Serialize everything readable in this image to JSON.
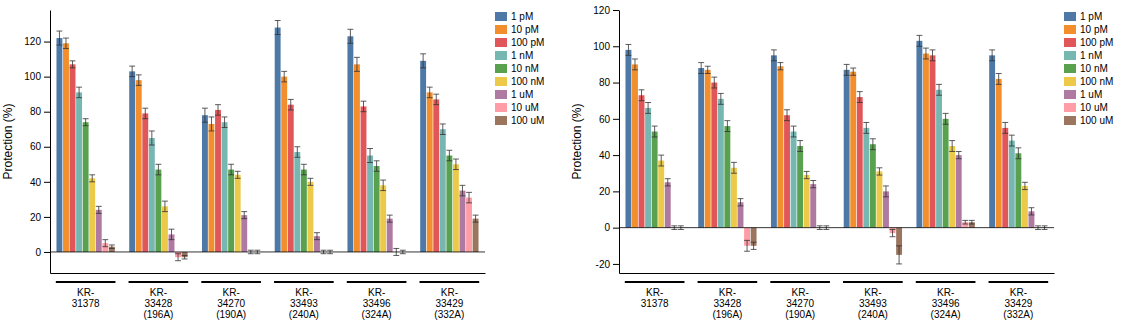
{
  "chart_data": [
    {
      "type": "bar",
      "ylabel": "Protection (%)",
      "categories": [
        "KR-\n31378",
        "KR-\n33428\n(196A)",
        "KR-\n34270\n(190A)",
        "KR-\n33493\n(240A)",
        "KR-\n33496\n(324A)",
        "KR-\n33429\n(332A)"
      ],
      "series": [
        {
          "name": "1 pM",
          "values": [
            122,
            103,
            78,
            128,
            123,
            109
          ],
          "errors": [
            4,
            3,
            4,
            4,
            4,
            4
          ]
        },
        {
          "name": "10 pM",
          "values": [
            119,
            98,
            73,
            100,
            107,
            91
          ],
          "errors": [
            3,
            3,
            4,
            3,
            4,
            3
          ]
        },
        {
          "name": "100 pM",
          "values": [
            107,
            79,
            81,
            84,
            83,
            87
          ],
          "errors": [
            2,
            3,
            3,
            3,
            3,
            3
          ]
        },
        {
          "name": "1 nM",
          "values": [
            91,
            65,
            74,
            57,
            55,
            70
          ],
          "errors": [
            3,
            4,
            3,
            3,
            4,
            3
          ]
        },
        {
          "name": "10 nM",
          "values": [
            74,
            47,
            47,
            47,
            49,
            55
          ],
          "errors": [
            2,
            3,
            3,
            3,
            3,
            3
          ]
        },
        {
          "name": "100 nM",
          "values": [
            42,
            26,
            44,
            40,
            38,
            50
          ],
          "errors": [
            2,
            3,
            2,
            2,
            3,
            3
          ]
        },
        {
          "name": "1 uM",
          "values": [
            24,
            10,
            21,
            9,
            19,
            35
          ],
          "errors": [
            2,
            3,
            2,
            2,
            2,
            3
          ]
        },
        {
          "name": "10 uM",
          "values": [
            5,
            -3,
            0,
            0,
            0,
            31
          ],
          "errors": [
            2,
            2,
            1,
            1,
            2,
            3
          ]
        },
        {
          "name": "100 uM",
          "values": [
            3,
            -3,
            0,
            0,
            0,
            19
          ],
          "errors": [
            1,
            1,
            1,
            1,
            1,
            2
          ]
        }
      ],
      "ylim": [
        -12,
        138
      ],
      "yticks": [
        0,
        20,
        40,
        60,
        80,
        100,
        120
      ],
      "grid": false,
      "legend": "upper right"
    },
    {
      "type": "bar",
      "ylabel": "Protection (%)",
      "categories": [
        "KR-\n31378",
        "KR-\n33428\n(196A)",
        "KR-\n34270\n(190A)",
        "KR-\n33493\n(240A)",
        "KR-\n33496\n(324A)",
        "KR-\n33429\n(332A)"
      ],
      "series": [
        {
          "name": "1 pM",
          "values": [
            98,
            88,
            95,
            87,
            103,
            95
          ],
          "errors": [
            3,
            3,
            3,
            3,
            3,
            3
          ]
        },
        {
          "name": "10 pM",
          "values": [
            90,
            87,
            89,
            86,
            96,
            82
          ],
          "errors": [
            3,
            2,
            2,
            2,
            3,
            3
          ]
        },
        {
          "name": "100 pM",
          "values": [
            73,
            80,
            62,
            72,
            95,
            55
          ],
          "errors": [
            3,
            3,
            3,
            3,
            3,
            3
          ]
        },
        {
          "name": "1 nM",
          "values": [
            66,
            71,
            53,
            55,
            76,
            48
          ],
          "errors": [
            3,
            3,
            3,
            3,
            3,
            3
          ]
        },
        {
          "name": "10 nM",
          "values": [
            53,
            56,
            45,
            46,
            60,
            41
          ],
          "errors": [
            3,
            3,
            3,
            3,
            3,
            3
          ]
        },
        {
          "name": "100 nM",
          "values": [
            37,
            33,
            29,
            31,
            45,
            23
          ],
          "errors": [
            3,
            3,
            2,
            2,
            3,
            2
          ]
        },
        {
          "name": "1 uM",
          "values": [
            25,
            14,
            24,
            20,
            40,
            9
          ],
          "errors": [
            2,
            2,
            2,
            3,
            2,
            2
          ]
        },
        {
          "name": "10 uM",
          "values": [
            0,
            -10,
            0,
            -3,
            3,
            0
          ],
          "errors": [
            1,
            3,
            1,
            2,
            1,
            1
          ]
        },
        {
          "name": "100 uM",
          "values": [
            0,
            -10,
            0,
            -15,
            3,
            0
          ],
          "errors": [
            1,
            2,
            1,
            5,
            1,
            1
          ]
        }
      ],
      "ylim": [
        -25,
        120
      ],
      "yticks": [
        -20,
        0,
        20,
        40,
        60,
        80,
        100,
        120
      ],
      "grid": false,
      "legend": "upper right"
    }
  ]
}
